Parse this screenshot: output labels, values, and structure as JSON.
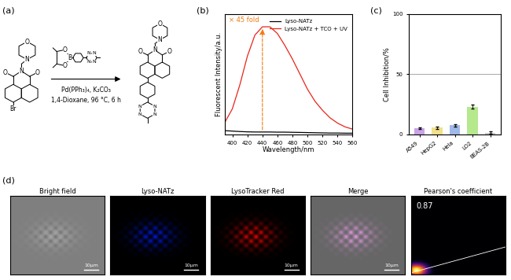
{
  "panel_labels": [
    "(a)",
    "(b)",
    "(c)",
    "(d)"
  ],
  "scheme": {
    "reactant_atoms": [
      "O",
      "N",
      "O",
      "O",
      "N",
      "Br"
    ],
    "reagent_atoms": [
      "B",
      "O",
      "O",
      "N",
      "N",
      "N",
      "N"
    ],
    "product_atoms": [
      "O",
      "N",
      "O",
      "O",
      "N",
      "N",
      "N",
      "N",
      "N"
    ],
    "conditions": [
      "Pd(PPh₃)₄, K₂CO₃",
      "1,4-Dioxane, 96 °C, 6 h"
    ]
  },
  "chart_data": [
    {
      "type": "line",
      "x_label": "Wavelength/nm",
      "y_label": "Fluorescent Intensity/a.u.",
      "x": [
        390,
        400,
        410,
        420,
        430,
        440,
        450,
        460,
        470,
        480,
        490,
        500,
        510,
        520,
        530,
        540,
        550,
        560
      ],
      "series": [
        {
          "name": "Lyso-NATz",
          "color": "#000000",
          "values": [
            25,
            22,
            19,
            17,
            16,
            16,
            16,
            15,
            15,
            14,
            13,
            12,
            11,
            10,
            9,
            9,
            8,
            8
          ]
        },
        {
          "name": "Lyso-NATz + TCO + UV",
          "color": "#e8251c",
          "values": [
            80,
            170,
            330,
            520,
            660,
            715,
            715,
            670,
            590,
            500,
            400,
            300,
            220,
            160,
            110,
            75,
            50,
            35
          ]
        }
      ],
      "annotations": [
        "× 45 fold"
      ],
      "xlim": [
        390,
        560
      ],
      "xticks": [
        400,
        420,
        440,
        460,
        480,
        500,
        520,
        540,
        560
      ],
      "ylim": [
        0,
        800
      ],
      "tick_labels": "x",
      "legend": "upper right"
    },
    {
      "type": "bar",
      "y_label": "Cell Inhibition/%",
      "categories": [
        "A549",
        "HepG2",
        "Hela",
        "LO2",
        "BEAS-2B"
      ],
      "values": [
        5,
        5.5,
        7.5,
        23,
        1.5
      ],
      "errors": [
        0.5,
        0.8,
        1.0,
        1.5,
        0.8
      ],
      "colors": [
        "#c9a3e6",
        "#f2e08a",
        "#9fb8ea",
        "#b6e88e",
        "#c8c8c8"
      ],
      "threshold": 50,
      "ylim": [
        0,
        100
      ],
      "yticks": [
        0,
        50,
        100
      ]
    }
  ],
  "microscopy": {
    "titles": [
      "Bright field",
      "Lyso-NATz",
      "LysoTracker Red",
      "Merge",
      "Pearson's coefficient"
    ],
    "scale_bar": "10μm",
    "pearson_coefficient": 0.87
  }
}
